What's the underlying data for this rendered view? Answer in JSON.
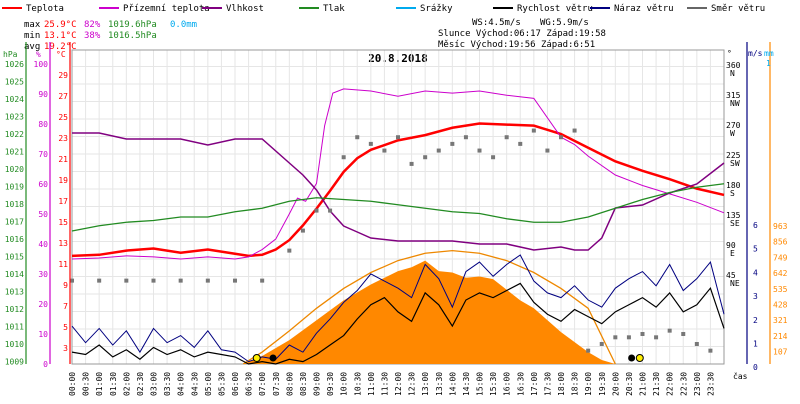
{
  "chart_data": {
    "type": "line",
    "title": "20.8.2018",
    "xlabel": "čas",
    "x_ticks": [
      "00:00",
      "00:30",
      "01:00",
      "01:30",
      "02:00",
      "02:30",
      "03:00",
      "03:30",
      "04:00",
      "04:30",
      "05:00",
      "05:30",
      "06:00",
      "06:30",
      "07:00",
      "07:30",
      "08:00",
      "08:30",
      "09:00",
      "09:30",
      "10:00",
      "10:30",
      "11:00",
      "11:30",
      "12:00",
      "12:30",
      "13:00",
      "13:30",
      "14:00",
      "14:30",
      "15:00",
      "15:30",
      "16:00",
      "16:30",
      "17:00",
      "17:30",
      "18:00",
      "18:30",
      "19:00",
      "19:30",
      "20:00",
      "20:30",
      "21:00",
      "21:30",
      "22:00",
      "22:30",
      "23:00",
      "23:30"
    ],
    "axes": {
      "pressure": {
        "label": "hPa",
        "color": "#228b22",
        "ticks": [
          "1026",
          "1025",
          "1024",
          "1023",
          "1022",
          "1021",
          "1020",
          "1019",
          "1018",
          "1017",
          "1016",
          "1015",
          "1014",
          "1013",
          "1012",
          "1011",
          "1010",
          "1009"
        ]
      },
      "humidity": {
        "label": "%",
        "color": "#cc00cc",
        "ticks": [
          "100",
          "90",
          "80",
          "70",
          "60",
          "50",
          "40",
          "30",
          "20",
          "10",
          "0"
        ]
      },
      "temperature": {
        "label": "°C",
        "color": "#ff0000",
        "ticks": [
          "29",
          "27",
          "25",
          "23",
          "21",
          "19",
          "17",
          "15",
          "13",
          "11",
          "9",
          "7",
          "5",
          "3"
        ]
      },
      "wind_direction": {
        "label": "°",
        "color": "#000000",
        "ticks": [
          "360\nN",
          "315\nNW",
          "270\nW",
          "225\nSW",
          "180\nS",
          "135\nSE",
          "90\nE",
          "45\nNE"
        ]
      },
      "wind_speed": {
        "label": "m/s",
        "color": "#000080",
        "ticks": [
          "6",
          "5",
          "4",
          "3",
          "2",
          "1",
          "0"
        ]
      },
      "rain": {
        "label": "mm",
        "color": "#00aaee",
        "ticks": [
          "1"
        ]
      },
      "solar": {
        "label": "",
        "color": "#ff8800",
        "ticks": [
          "963",
          "856",
          "749",
          "642",
          "535",
          "428",
          "321",
          "214",
          "107"
        ]
      }
    },
    "legend": [
      {
        "name": "Teplota",
        "color": "#ff0000"
      },
      {
        "name": "Přízemní teplota",
        "color": "#cc00cc"
      },
      {
        "name": "Vlhkost",
        "color": "#800080"
      },
      {
        "name": "Tlak",
        "color": "#228b22"
      },
      {
        "name": "Srážky",
        "color": "#00aaee"
      },
      {
        "name": "Rychlost větru",
        "color": "#000000"
      },
      {
        "name": "Náraz větru",
        "color": "#000080"
      },
      {
        "name": "Směr větru",
        "color": "#666666"
      }
    ],
    "stats": {
      "max": {
        "label": "max",
        "temp": "25.9°C",
        "hum": "82%",
        "press": "1019.6hPa",
        "rain": "0.0mm"
      },
      "min": {
        "label": "min",
        "temp": "13.1°C",
        "hum": "38%",
        "press": "1016.5hPa"
      },
      "avg": {
        "label": "avg",
        "temp": "19.2°C"
      }
    },
    "info": {
      "ws": "WS:4.5m/s",
      "wg": "WG:5.9m/s",
      "sun": "Slunce Východ:06:17  Západ:19:58",
      "moon": "Měsíc  Východ:19:56  Západ:6:51"
    },
    "series": [
      {
        "name": "Teplota",
        "axis": "temperature",
        "x": [
          0,
          1,
          2,
          3,
          4,
          5,
          6,
          6.5,
          7,
          7.5,
          8,
          8.5,
          9,
          9.5,
          10,
          10.5,
          11,
          12,
          13,
          14,
          15,
          16,
          17,
          17.5,
          18,
          19,
          20,
          21,
          22,
          23,
          24
        ],
        "values": [
          13.3,
          13.4,
          13.8,
          14.0,
          13.6,
          13.9,
          13.5,
          13.3,
          13.4,
          13.9,
          14.8,
          16.2,
          17.8,
          19.5,
          21.3,
          22.6,
          23.4,
          24.3,
          24.8,
          25.5,
          25.9,
          25.8,
          25.7,
          25.3,
          24.9,
          23.6,
          22.3,
          21.4,
          20.6,
          19.7,
          19.1
        ]
      },
      {
        "name": "Přízemní teplota",
        "axis": "temperature",
        "x": [
          0,
          1,
          2,
          3,
          4,
          5,
          6,
          6.5,
          7,
          7.5,
          8,
          8.3,
          8.6,
          9,
          9.3,
          9.6,
          10,
          11,
          12,
          13,
          14,
          15,
          16,
          17,
          18,
          18.5,
          19,
          20,
          21,
          22,
          23,
          24
        ],
        "values": [
          13.0,
          13.1,
          13.3,
          13.2,
          13.0,
          13.2,
          13.0,
          13.2,
          13.9,
          14.9,
          17.3,
          18.8,
          18.5,
          20.2,
          25.7,
          28.8,
          29.2,
          29.0,
          28.5,
          29.0,
          28.8,
          29.0,
          28.6,
          28.3,
          24.6,
          23.9,
          22.8,
          21.0,
          20.0,
          19.2,
          18.4,
          17.4
        ]
      },
      {
        "name": "Vlhkost",
        "axis": "humidity",
        "x": [
          0,
          1,
          2,
          3,
          4,
          5,
          6,
          7,
          8,
          8.5,
          9,
          9.5,
          10,
          10.5,
          11,
          12,
          13,
          14,
          15,
          16,
          17,
          18,
          18.5,
          19,
          19.5,
          20,
          21,
          22,
          23,
          24
        ],
        "values": [
          77,
          77,
          75,
          75,
          75,
          73,
          75,
          75,
          67,
          63,
          58,
          51,
          46,
          44,
          42,
          41,
          41,
          41,
          40,
          40,
          38,
          39,
          38,
          38,
          42,
          52,
          53,
          57,
          60,
          67
        ]
      },
      {
        "name": "Tlak",
        "axis": "pressure",
        "x": [
          0,
          1,
          2,
          3,
          4,
          5,
          6,
          7,
          8,
          9,
          10,
          11,
          12,
          13,
          14,
          15,
          16,
          17,
          18,
          19,
          20,
          21,
          22,
          23,
          24
        ],
        "values": [
          1016.6,
          1016.9,
          1017.1,
          1017.2,
          1017.4,
          1017.4,
          1017.7,
          1017.9,
          1018.3,
          1018.5,
          1018.4,
          1018.3,
          1018.1,
          1017.9,
          1017.7,
          1017.6,
          1017.3,
          1017.1,
          1017.1,
          1017.4,
          1017.9,
          1018.4,
          1018.8,
          1019.1,
          1019.3
        ]
      },
      {
        "name": "Rychlost větru",
        "axis": "wind_speed",
        "x": [
          0,
          0.5,
          1,
          1.5,
          2,
          2.5,
          3,
          3.5,
          4,
          4.5,
          5,
          5.5,
          6,
          6.5,
          7,
          7.5,
          8,
          8.5,
          9,
          9.5,
          10,
          10.5,
          11,
          11.5,
          12,
          12.5,
          13,
          13.5,
          14,
          14.5,
          15,
          15.5,
          16,
          16.5,
          17,
          17.5,
          18,
          18.5,
          19,
          19.5,
          20,
          20.5,
          21,
          21.5,
          22,
          22.5,
          23,
          23.5,
          24
        ],
        "values": [
          0.5,
          0.4,
          0.8,
          0.3,
          0.6,
          0.2,
          0.7,
          0.4,
          0.6,
          0.3,
          0.5,
          0.4,
          0.3,
          0.0,
          0.1,
          0.0,
          0.2,
          0.1,
          0.4,
          0.8,
          1.2,
          1.9,
          2.5,
          2.8,
          2.2,
          1.8,
          3.0,
          2.5,
          1.6,
          2.7,
          3.0,
          2.8,
          3.1,
          3.4,
          2.6,
          2.1,
          1.8,
          2.3,
          2.0,
          1.7,
          2.2,
          2.5,
          2.8,
          2.4,
          3.0,
          2.2,
          2.5,
          3.2,
          1.5
        ]
      },
      {
        "name": "Náraz větru",
        "axis": "wind_speed",
        "x": [
          0,
          0.5,
          1,
          1.5,
          2,
          2.5,
          3,
          3.5,
          4,
          4.5,
          5,
          5.5,
          6,
          6.5,
          7,
          7.5,
          8,
          8.5,
          9,
          9.5,
          10,
          10.5,
          11,
          11.5,
          12,
          12.5,
          13,
          13.5,
          14,
          14.5,
          15,
          15.5,
          16,
          16.5,
          17,
          17.5,
          18,
          18.5,
          19,
          19.5,
          20,
          20.5,
          21,
          21.5,
          22,
          22.5,
          23,
          23.5,
          24
        ],
        "values": [
          1.6,
          0.9,
          1.5,
          0.8,
          1.4,
          0.5,
          1.5,
          0.9,
          1.2,
          0.7,
          1.4,
          0.6,
          0.5,
          0.1,
          0.3,
          0.2,
          0.8,
          0.5,
          1.3,
          1.9,
          2.6,
          3.1,
          3.8,
          3.5,
          3.2,
          2.8,
          4.2,
          3.6,
          2.4,
          3.9,
          4.3,
          3.7,
          4.2,
          4.6,
          3.5,
          3.0,
          2.8,
          3.3,
          2.7,
          2.4,
          3.2,
          3.6,
          3.9,
          3.3,
          4.2,
          3.1,
          3.6,
          4.3,
          2.1
        ]
      },
      {
        "name": "Směr větru",
        "axis": "wind_direction",
        "x": [
          0,
          1,
          2,
          3,
          4,
          5,
          6,
          7,
          8,
          8.5,
          9,
          9.5,
          10,
          10.5,
          11,
          11.5,
          12,
          12.5,
          13,
          13.5,
          14,
          14.5,
          15,
          15.5,
          16,
          16.5,
          17,
          17.5,
          18,
          18.5,
          19,
          19.5,
          20,
          20.5,
          21,
          21.5,
          22,
          22.5,
          23,
          23.5
        ],
        "values": [
          125,
          125,
          125,
          125,
          125,
          125,
          125,
          125,
          170,
          200,
          230,
          230,
          310,
          340,
          330,
          320,
          340,
          300,
          310,
          320,
          330,
          340,
          320,
          310,
          340,
          330,
          350,
          320,
          340,
          350,
          20,
          30,
          40,
          40,
          45,
          40,
          50,
          45,
          30,
          20
        ]
      }
    ],
    "solar": {
      "name": "Radiation",
      "x": [
        6.3,
        7,
        8,
        9,
        10,
        11,
        12,
        12.5,
        13,
        13.5,
        14,
        14.5,
        15,
        15.5,
        16,
        16.5,
        17,
        18,
        19,
        19.5,
        20
      ],
      "values": [
        0,
        60,
        180,
        330,
        480,
        600,
        700,
        730,
        780,
        700,
        690,
        650,
        660,
        640,
        560,
        480,
        420,
        240,
        90,
        30,
        0
      ]
    },
    "theoretical_solar": {
      "x": [
        6.3,
        7,
        8,
        9,
        10,
        11,
        12,
        13,
        14,
        15,
        16,
        17,
        18,
        19,
        20
      ],
      "values": [
        0,
        90,
        250,
        420,
        570,
        690,
        780,
        835,
        855,
        835,
        780,
        690,
        570,
        420,
        0
      ]
    }
  }
}
